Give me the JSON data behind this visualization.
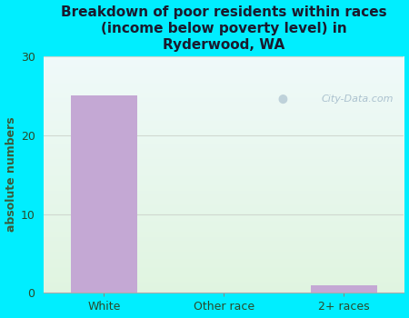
{
  "title": "Breakdown of poor residents within races\n(income below poverty level) in\nRyderwood, WA",
  "categories": [
    "White",
    "Other race",
    "2+ races"
  ],
  "values": [
    25,
    0,
    1
  ],
  "bar_color": "#c4a8d4",
  "ylabel": "absolute numbers",
  "ylim": [
    0,
    30
  ],
  "yticks": [
    0,
    10,
    20,
    30
  ],
  "background_outer": "#00eeff",
  "grid_color": "#d0d8d0",
  "title_color": "#1a1a2e",
  "axis_label_color": "#3a5a3a",
  "tick_label_color": "#2a4a2a",
  "watermark": "City-Data.com",
  "plot_bg_top": "#e8f5f8",
  "plot_bg_bottom": "#e0f0e0"
}
